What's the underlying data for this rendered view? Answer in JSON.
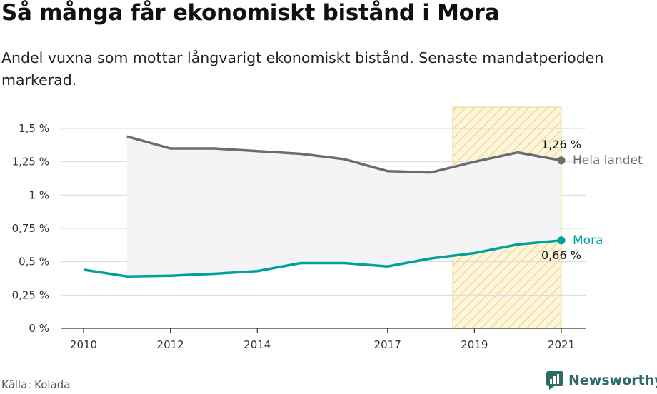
{
  "title": "Så många får ekonomiskt bistånd i Mora",
  "subtitle": "Andel vuxna som mottar långvarigt ekonomiskt bistånd. Senaste mandatperioden markerad.",
  "source": "Källa: Kolada",
  "brand": "Newsworthy",
  "colors": {
    "national": "#6b6b73",
    "mora": "#00a19a",
    "highlight": "#f5d88a",
    "area": "#f4f4f6"
  },
  "chart_data": {
    "type": "line",
    "x": [
      2010,
      2011,
      2012,
      2013,
      2014,
      2015,
      2016,
      2017,
      2018,
      2019,
      2020,
      2021
    ],
    "series": [
      {
        "name": "Hela landet",
        "values": [
          null,
          1.44,
          1.35,
          1.35,
          1.33,
          1.31,
          1.27,
          1.18,
          1.17,
          1.25,
          1.32,
          1.26
        ]
      },
      {
        "name": "Mora",
        "values": [
          0.44,
          0.39,
          0.395,
          0.41,
          0.43,
          0.49,
          0.49,
          0.465,
          0.525,
          0.565,
          0.63,
          0.66
        ]
      }
    ],
    "end_labels": [
      "1,26 %",
      "0,66 %"
    ],
    "x_ticks": [
      2010,
      2012,
      2014,
      2017,
      2019,
      2021
    ],
    "x_tick_labels": [
      "2010",
      "2012",
      "2014",
      "2017",
      "2019",
      "2021"
    ],
    "y_ticks": [
      0,
      0.25,
      0.5,
      0.75,
      1,
      1.25,
      1.5
    ],
    "y_tick_labels": [
      "0 %",
      "0,25 %",
      "0,5 %",
      "0,75 %",
      "1 %",
      "1,25 %",
      "1,5 %"
    ],
    "ylim": [
      0,
      1.5
    ],
    "highlight_period": [
      2018.5,
      2021
    ],
    "grid": true
  }
}
